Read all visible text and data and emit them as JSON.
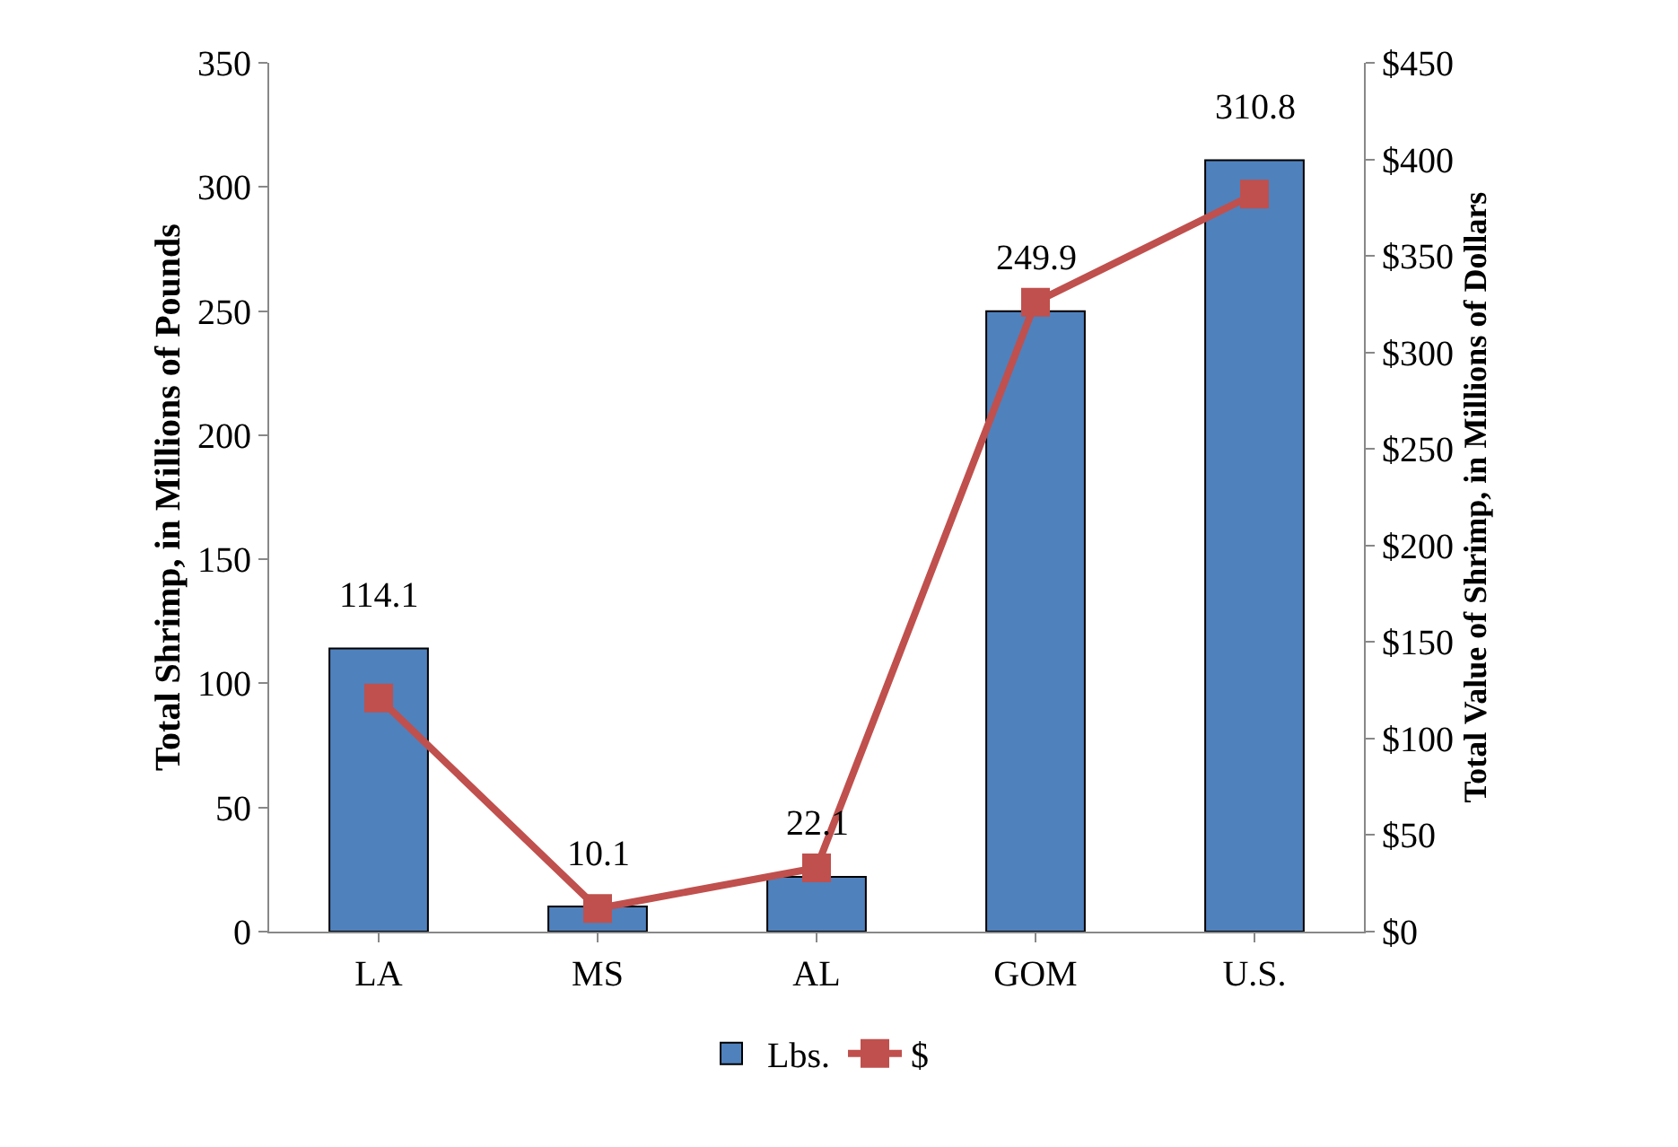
{
  "chart_data": {
    "type": "bar",
    "categories": [
      "LA",
      "MS",
      "AL",
      "GOM",
      "U.S."
    ],
    "series": [
      {
        "name": "Lbs.",
        "color": "#4f81bd",
        "values": [
          114.1,
          10.1,
          22.1,
          249.9,
          310.8
        ],
        "value_labels": [
          "114.1",
          "10.1",
          "22.1",
          "249.9",
          "310.8"
        ]
      },
      {
        "name": "$",
        "type": "line",
        "axis": "y2",
        "color": "#c0504d",
        "marker": "square",
        "values": [
          121,
          12,
          33,
          326,
          382
        ]
      }
    ],
    "ylabel": "Total Shrimp, in Millions of Pounds",
    "y2label": "Total Value of Shrimp, in Millions of Dollars",
    "ylim": [
      0,
      350
    ],
    "yticks": [
      0,
      50,
      100,
      150,
      200,
      250,
      300,
      350
    ],
    "y2lim": [
      0,
      450
    ],
    "y2ticks": [
      {
        "value": 0,
        "label": "$0"
      },
      {
        "value": 50,
        "label": "$50"
      },
      {
        "value": 100,
        "label": "$100"
      },
      {
        "value": 150,
        "label": "$150"
      },
      {
        "value": 200,
        "label": "$200"
      },
      {
        "value": 250,
        "label": "$250"
      },
      {
        "value": 300,
        "label": "$300"
      },
      {
        "value": 350,
        "label": "$350"
      },
      {
        "value": 400,
        "label": "$400"
      },
      {
        "value": 450,
        "label": "$450"
      }
    ],
    "grid": false,
    "legend": "bottom"
  }
}
